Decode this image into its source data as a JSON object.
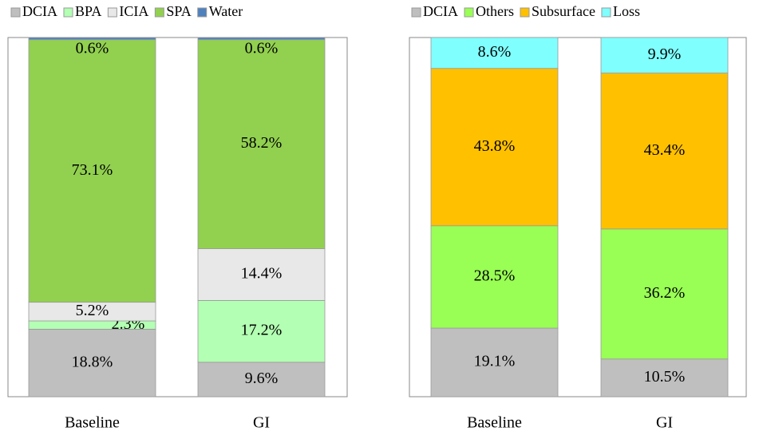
{
  "chart_data": [
    {
      "type": "stacked-bar",
      "categories": [
        "Baseline",
        "GI"
      ],
      "series": [
        {
          "name": "DCIA",
          "color": "#bfbfbf",
          "values": [
            18.8,
            9.6
          ],
          "value_labels": [
            "18.8%",
            "9.6%"
          ]
        },
        {
          "name": "BPA",
          "color": "#b3ffb3",
          "values": [
            2.3,
            17.2
          ],
          "value_labels": [
            "2.3%",
            "17.2%"
          ]
        },
        {
          "name": "ICIA",
          "color": "#e8e8e8",
          "values": [
            5.2,
            14.4
          ],
          "value_labels": [
            "5.2%",
            "14.4%"
          ]
        },
        {
          "name": "SPA",
          "color": "#92d050",
          "values": [
            73.1,
            58.2
          ],
          "value_labels": [
            "73.1%",
            "58.2%"
          ]
        },
        {
          "name": "Water",
          "color": "#4f81bd",
          "values": [
            0.6,
            0.6
          ],
          "value_labels": [
            "0.6%",
            "0.6%"
          ]
        }
      ]
    },
    {
      "type": "stacked-bar",
      "categories": [
        "Baseline",
        "GI"
      ],
      "series": [
        {
          "name": "DCIA",
          "color": "#bfbfbf",
          "values": [
            19.1,
            10.5
          ],
          "value_labels": [
            "19.1%",
            "10.5%"
          ]
        },
        {
          "name": "Others",
          "color": "#99ff55",
          "values": [
            28.5,
            36.2
          ],
          "value_labels": [
            "28.5%",
            "36.2%"
          ]
        },
        {
          "name": "Subsurface",
          "color": "#ffc000",
          "values": [
            43.8,
            43.4
          ],
          "value_labels": [
            "43.8%",
            "43.4%"
          ]
        },
        {
          "name": "Loss",
          "color": "#80ffff",
          "values": [
            8.6,
            9.9
          ],
          "value_labels": [
            "8.6%",
            "9.9%"
          ]
        }
      ]
    }
  ]
}
